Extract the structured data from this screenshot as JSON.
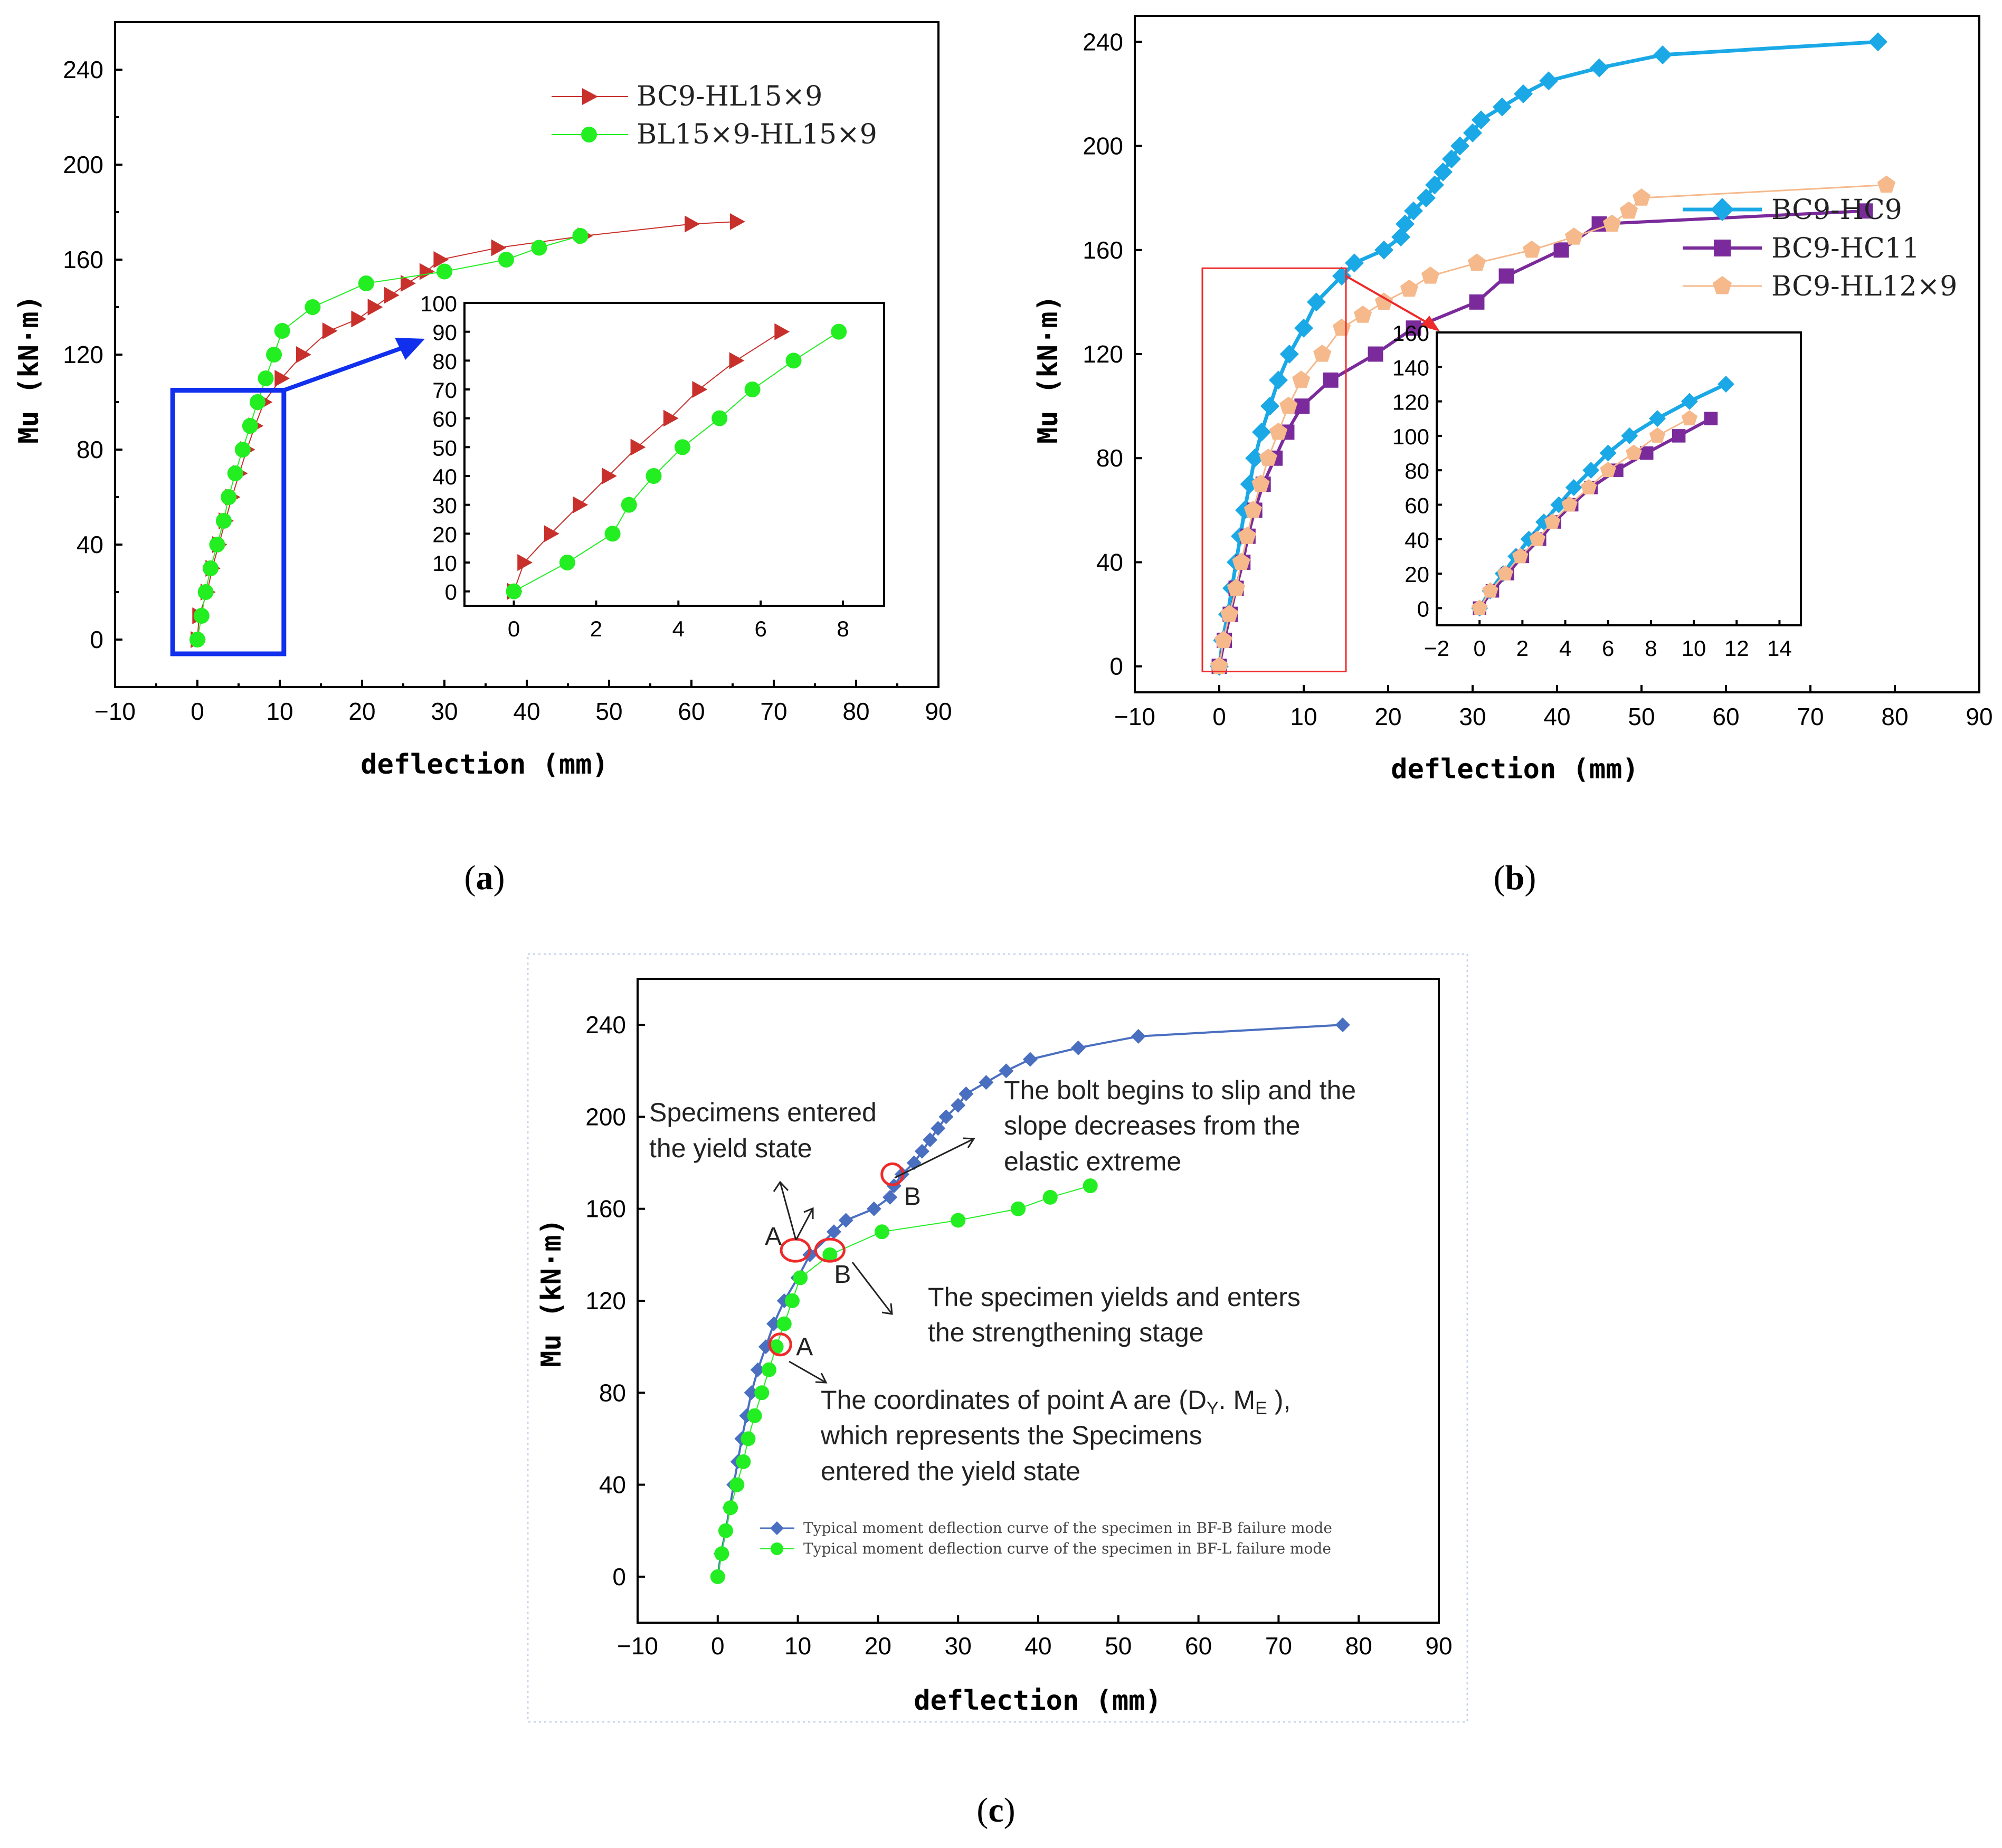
{
  "colors": {
    "red": "#c8302c",
    "green": "#22ee22",
    "cyan": "#1aa9e6",
    "purple": "#7a2a9a",
    "peach": "#f5b98c",
    "blue": "#4a6fc0",
    "highlight_blue": "#1030ee",
    "highlight_red": "#ee2a2a"
  },
  "panel_labels": {
    "a": {
      "open": "(",
      "letter": "a",
      "close": ")"
    },
    "b": {
      "open": "(",
      "letter": "b",
      "close": ")"
    },
    "c": {
      "open": "(",
      "letter": "c",
      "close": ")"
    }
  },
  "chart_data": [
    {
      "id": "a",
      "type": "line",
      "xlabel": "deflection (mm)",
      "ylabel": "Mu (kN·m)",
      "xlim": [
        -10,
        90
      ],
      "ylim": [
        -20,
        260
      ],
      "xticks": [
        -10,
        0,
        10,
        20,
        30,
        40,
        50,
        60,
        70,
        80,
        90
      ],
      "yticks": [
        0,
        40,
        80,
        120,
        160,
        200,
        240
      ],
      "legend_position": "top-right",
      "series": [
        {
          "name": "BC9-HL15×9",
          "marker": "triangle-right",
          "color": "#c8302c",
          "x": [
            0,
            0.2,
            1.2,
            1.8,
            2.6,
            3.4,
            4.2,
            5.1,
            6.0,
            7.0,
            8.1,
            10.2,
            12.8,
            16.0,
            19.5,
            21.5,
            23.5,
            25.5,
            27.8,
            29.5,
            36.5,
            47.0,
            60.0,
            65.5
          ],
          "y": [
            0,
            10,
            20,
            30,
            40,
            50,
            60,
            70,
            80,
            90,
            100,
            110,
            120,
            130,
            135,
            140,
            145,
            150,
            155,
            160,
            165,
            170,
            175,
            176
          ]
        },
        {
          "name": "BL15×9-HL15×9",
          "marker": "circle",
          "color": "#22ee22",
          "x": [
            0,
            0.5,
            1.0,
            1.6,
            2.4,
            3.2,
            3.8,
            4.6,
            5.5,
            6.4,
            7.3,
            8.3,
            9.3,
            10.3,
            14.0,
            20.5,
            30.0,
            37.5,
            41.5,
            46.5
          ],
          "y": [
            0,
            10,
            20,
            30,
            40,
            50,
            60,
            70,
            80,
            90,
            100,
            110,
            120,
            130,
            140,
            150,
            155,
            160,
            165,
            170
          ]
        }
      ],
      "highlight_box": {
        "xlim": [
          -3,
          10.5
        ],
        "ylim": [
          -6,
          105
        ]
      },
      "inset": {
        "xlim": [
          -1.2,
          9
        ],
        "ylim": [
          -5,
          100
        ],
        "xticks": [
          0,
          2,
          4,
          6,
          8
        ],
        "yticks": [
          0,
          10,
          20,
          30,
          40,
          50,
          60,
          70,
          80,
          90,
          100
        ],
        "series": [
          {
            "name": "BC9-HL15×9",
            "x": [
              0,
              0.25,
              0.9,
              1.6,
              2.3,
              3.0,
              3.8,
              4.5,
              5.4,
              6.5
            ],
            "y": [
              0,
              10,
              20,
              30,
              40,
              50,
              60,
              70,
              80,
              90
            ]
          },
          {
            "name": "BL15×9-HL15×9",
            "x": [
              0,
              1.3,
              2.4,
              2.8,
              3.4,
              4.1,
              5.0,
              5.8,
              6.8,
              7.9
            ],
            "y": [
              0,
              10,
              20,
              30,
              40,
              50,
              60,
              70,
              80,
              90
            ]
          }
        ]
      }
    },
    {
      "id": "b",
      "type": "line",
      "xlabel": "deflection (mm)",
      "ylabel": "Mu (kN·m)",
      "xlim": [
        -10,
        90
      ],
      "ylim": [
        -10,
        250
      ],
      "xticks": [
        -10,
        0,
        10,
        20,
        30,
        40,
        50,
        60,
        70,
        80,
        90
      ],
      "yticks": [
        0,
        40,
        80,
        120,
        160,
        200,
        240
      ],
      "legend_position": "right",
      "series": [
        {
          "name": "BC9-HC9",
          "marker": "diamond",
          "color": "#1aa9e6",
          "x": [
            0,
            0.4,
            1.0,
            1.5,
            2.0,
            2.5,
            3.0,
            3.6,
            4.2,
            5.0,
            6.0,
            7.0,
            8.3,
            10.0,
            11.5,
            14.5,
            16.0,
            19.5,
            21.5,
            22.0,
            23.0,
            24.5,
            25.5,
            26.5,
            27.5,
            28.5,
            30.0,
            31.0,
            33.5,
            36.0,
            39.0,
            45.0,
            52.5,
            78.0
          ],
          "y": [
            0,
            10,
            20,
            30,
            40,
            50,
            60,
            70,
            80,
            90,
            100,
            110,
            120,
            130,
            140,
            150,
            155,
            160,
            165,
            170,
            175,
            180,
            185,
            190,
            195,
            200,
            205,
            210,
            215,
            220,
            225,
            230,
            235,
            240
          ]
        },
        {
          "name": "BC9-HC11",
          "marker": "square",
          "color": "#7a2a9a",
          "x": [
            0,
            0.6,
            1.3,
            2.0,
            2.8,
            3.4,
            4.2,
            5.2,
            6.6,
            8.0,
            9.8,
            13.2,
            18.5,
            23.0,
            30.5,
            34.0,
            40.5,
            45.0,
            76.5
          ],
          "y": [
            0,
            10,
            20,
            30,
            40,
            50,
            60,
            70,
            80,
            90,
            100,
            110,
            120,
            130,
            140,
            150,
            160,
            170,
            175
          ]
        },
        {
          "name": "BC9-HL12×9",
          "marker": "pentagon",
          "color": "#f5b98c",
          "x": [
            0,
            0.5,
            1.2,
            2.0,
            2.6,
            3.3,
            4.0,
            4.9,
            5.8,
            7.0,
            8.2,
            9.7,
            12.2,
            14.5,
            17.0,
            19.5,
            22.5,
            25.0,
            30.5,
            37.0,
            42.0,
            46.5,
            48.5,
            50.0,
            79.0
          ],
          "y": [
            0,
            10,
            20,
            30,
            40,
            50,
            60,
            70,
            80,
            90,
            100,
            110,
            120,
            130,
            135,
            140,
            145,
            150,
            155,
            160,
            165,
            170,
            175,
            180,
            185
          ]
        }
      ],
      "highlight_box": {
        "xlim": [
          -2,
          15
        ],
        "ylim": [
          -2,
          153
        ]
      },
      "inset": {
        "xlim": [
          -2,
          15
        ],
        "ylim": [
          -10,
          160
        ],
        "xticks": [
          -2,
          0,
          2,
          4,
          6,
          8,
          10,
          12,
          14
        ],
        "yticks": [
          0,
          20,
          40,
          60,
          80,
          100,
          120,
          140,
          160
        ],
        "series": [
          {
            "name": "BC9-HC9",
            "x": [
              0,
              0.5,
              1.1,
              1.7,
              2.3,
              3.0,
              3.7,
              4.4,
              5.2,
              6.0,
              7.0,
              8.3,
              9.8,
              11.5
            ],
            "y": [
              0,
              10,
              20,
              30,
              40,
              50,
              60,
              70,
              80,
              90,
              100,
              110,
              120,
              130
            ]
          },
          {
            "name": "BC9-HC11",
            "x": [
              0,
              0.6,
              1.3,
              2.0,
              2.8,
              3.5,
              4.3,
              5.2,
              6.4,
              7.8,
              9.3,
              10.8
            ],
            "y": [
              0,
              10,
              20,
              30,
              40,
              50,
              60,
              70,
              80,
              90,
              100,
              110
            ]
          },
          {
            "name": "BC9-HL12×9",
            "x": [
              0,
              0.5,
              1.2,
              1.9,
              2.7,
              3.4,
              4.2,
              5.1,
              6.0,
              7.2,
              8.3,
              9.8
            ],
            "y": [
              0,
              10,
              20,
              30,
              40,
              50,
              60,
              70,
              80,
              90,
              100,
              110
            ]
          }
        ]
      }
    },
    {
      "id": "c",
      "type": "line",
      "xlabel": "deflection (mm)",
      "ylabel": "Mu (kN·m)",
      "xlim": [
        -10,
        90
      ],
      "ylim": [
        -20,
        260
      ],
      "xticks": [
        -10,
        0,
        10,
        20,
        30,
        40,
        50,
        60,
        70,
        80,
        90
      ],
      "yticks": [
        0,
        40,
        80,
        120,
        160,
        200,
        240
      ],
      "legend_position": "bottom-right",
      "series": [
        {
          "name": "Typical moment deflection curve of the specimen in BF-B failure mode",
          "marker": "diamond",
          "color": "#4a6fc0",
          "x": [
            0,
            0.4,
            1.0,
            1.5,
            2.0,
            2.5,
            3.0,
            3.6,
            4.2,
            5.0,
            6.0,
            7.0,
            8.3,
            10.0,
            11.5,
            14.5,
            16.0,
            19.5,
            21.5,
            22.0,
            23.0,
            24.5,
            25.5,
            26.5,
            27.5,
            28.5,
            30.0,
            31.0,
            33.5,
            36.0,
            39.0,
            45.0,
            52.5,
            78.0
          ],
          "y": [
            0,
            10,
            20,
            30,
            40,
            50,
            60,
            70,
            80,
            90,
            100,
            110,
            120,
            130,
            140,
            150,
            155,
            160,
            165,
            170,
            175,
            180,
            185,
            190,
            195,
            200,
            205,
            210,
            215,
            220,
            225,
            230,
            235,
            240
          ]
        },
        {
          "name": "Typical moment deflection curve of the specimen in BF-L failure mode",
          "marker": "circle",
          "color": "#22ee22",
          "x": [
            0,
            0.5,
            1.0,
            1.6,
            2.4,
            3.2,
            3.8,
            4.6,
            5.5,
            6.4,
            7.3,
            8.3,
            9.3,
            10.3,
            14.0,
            20.5,
            30.0,
            37.5,
            41.5,
            46.5
          ],
          "y": [
            0,
            10,
            20,
            30,
            40,
            50,
            60,
            70,
            80,
            90,
            100,
            110,
            120,
            130,
            140,
            150,
            155,
            160,
            165,
            170
          ]
        }
      ],
      "markers": [
        {
          "label": "A",
          "x": 7.8,
          "y": 101
        },
        {
          "label": "A",
          "x": 9.7,
          "y": 142
        },
        {
          "label": "B",
          "x": 14.0,
          "y": 142
        },
        {
          "label": "B",
          "x": 21.8,
          "y": 175
        }
      ],
      "annotations": [
        {
          "lines": [
            "Specimens entered",
            "the yield state"
          ]
        },
        {
          "lines": [
            "The bolt begins to slip and the",
            "slope decreases from the",
            "elastic extreme"
          ]
        },
        {
          "lines": [
            "The specimen yields and enters",
            "the strengthening stage"
          ]
        },
        {
          "lines_rich": [
            {
              "before": "The coordinates of point A are (D",
              "sub1": "Y",
              "mid": ". M",
              "sub2": "E",
              "after": " ),"
            },
            {
              "text": "which represents the Specimens"
            },
            {
              "text": "entered the yield state"
            }
          ]
        }
      ]
    }
  ]
}
